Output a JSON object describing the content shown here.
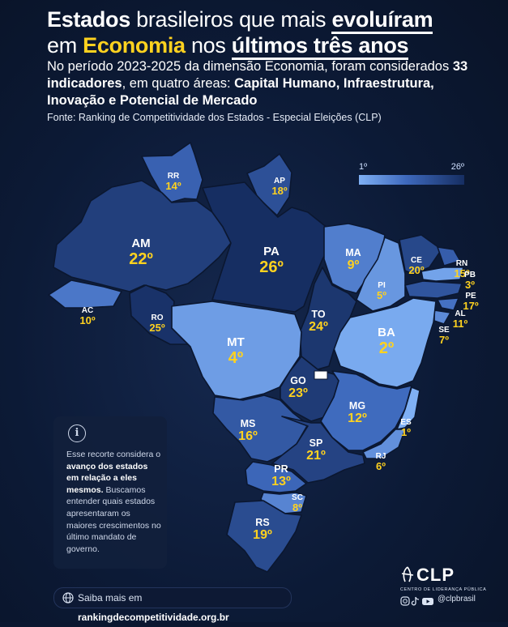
{
  "header": {
    "title_line1_bold": "Estados",
    "title_line1_mid": " brasileiros que mais ",
    "title_line1_em": "evoluíram",
    "title_line2_pre": "em ",
    "title_line2_em": "Economia",
    "title_line2_mid": " nos ",
    "title_line2_bold": "últimos três anos",
    "intro_a": "No período 2023-2025 da dimensão Economia, foram considerados ",
    "intro_b": "33 indicadores",
    "intro_c": ", em quatro áreas: ",
    "intro_d": "Capital Humano, Infraestrutura, Inovação e Potencial de Mercado",
    "source": "Fonte: Ranking de Competitividade dos Estados - Especial Eleições (CLP)"
  },
  "legend": {
    "min_label": "1º",
    "max_label": "26º"
  },
  "colors": {
    "accent_yellow": "#ffd21f",
    "background": "#0b1730",
    "best": "#7fb0f4",
    "worst": "#162e62"
  },
  "states": [
    {
      "uf": "RR",
      "rank": "14º",
      "value": 14
    },
    {
      "uf": "AP",
      "rank": "18º",
      "value": 18
    },
    {
      "uf": "AM",
      "rank": "22º",
      "value": 22
    },
    {
      "uf": "PA",
      "rank": "26º",
      "value": 26
    },
    {
      "uf": "MA",
      "rank": "9º",
      "value": 9
    },
    {
      "uf": "CE",
      "rank": "20º",
      "value": 20
    },
    {
      "uf": "RN",
      "rank": "15º",
      "value": 15
    },
    {
      "uf": "PB",
      "rank": "3º",
      "value": 3
    },
    {
      "uf": "PE",
      "rank": "17º",
      "value": 17
    },
    {
      "uf": "AL",
      "rank": "11º",
      "value": 11
    },
    {
      "uf": "SE",
      "rank": "7º",
      "value": 7
    },
    {
      "uf": "PI",
      "rank": "5º",
      "value": 5
    },
    {
      "uf": "AC",
      "rank": "10º",
      "value": 10
    },
    {
      "uf": "RO",
      "rank": "25º",
      "value": 25
    },
    {
      "uf": "TO",
      "rank": "24º",
      "value": 24
    },
    {
      "uf": "BA",
      "rank": "2º",
      "value": 2
    },
    {
      "uf": "MT",
      "rank": "4º",
      "value": 4
    },
    {
      "uf": "GO",
      "rank": "23º",
      "value": 23
    },
    {
      "uf": "MG",
      "rank": "12º",
      "value": 12
    },
    {
      "uf": "ES",
      "rank": "1º",
      "value": 1
    },
    {
      "uf": "MS",
      "rank": "16º",
      "value": 16
    },
    {
      "uf": "SP",
      "rank": "21º",
      "value": 21
    },
    {
      "uf": "RJ",
      "rank": "6º",
      "value": 6
    },
    {
      "uf": "PR",
      "rank": "13º",
      "value": 13
    },
    {
      "uf": "SC",
      "rank": "8º",
      "value": 8
    },
    {
      "uf": "RS",
      "rank": "19º",
      "value": 19
    }
  ],
  "note": {
    "icon": "info-icon",
    "a": "Esse recorte considera o ",
    "b": "avanço dos estados em relação a eles mesmos.",
    "c": " Buscamos entender quais estados apresentaram os maiores crescimentos no último mandato de governo."
  },
  "cta": {
    "icon": "globe-icon",
    "pre": "Saiba mais em ",
    "link": "rankingdecompetitividade.org.br"
  },
  "logo": {
    "name": "CLP",
    "full": "CENTRO DE LIDERANÇA PÚBLICA",
    "handle": "@clpbrasil",
    "social_icons": [
      "instagram-icon",
      "tiktok-icon",
      "youtube-icon"
    ]
  }
}
